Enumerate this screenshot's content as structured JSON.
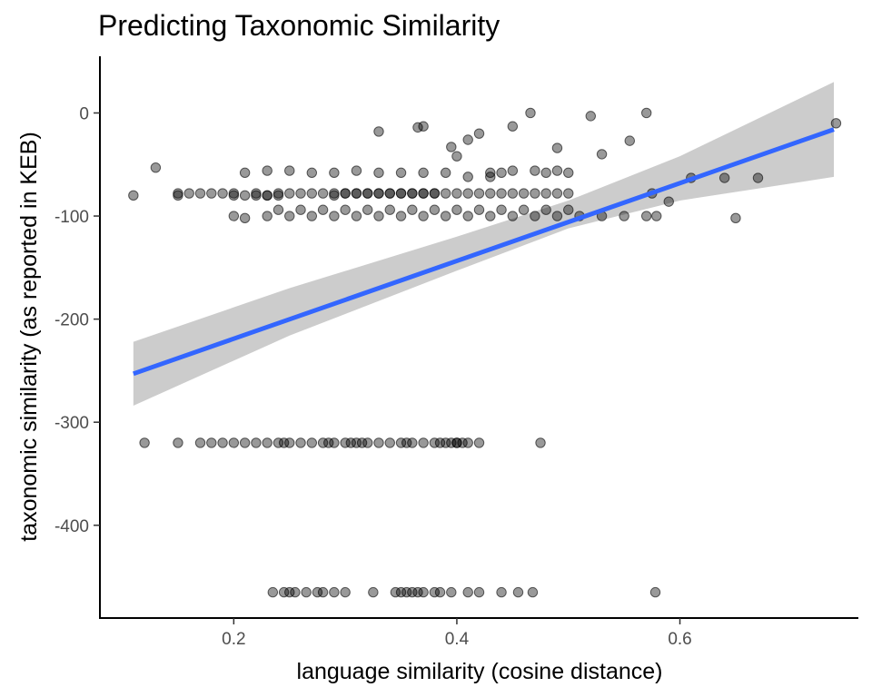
{
  "chart_data": {
    "type": "scatter",
    "title": "Predicting Taxonomic Similarity",
    "xlabel": "language similarity (cosine distance)",
    "ylabel": "taxonomic similarity (as reported in KEB)",
    "xlim": [
      0.08,
      0.76
    ],
    "ylim": [
      -490,
      55
    ],
    "xticks": [
      0.2,
      0.4,
      0.6
    ],
    "xtick_labels": [
      "0.2",
      "0.4",
      "0.6"
    ],
    "yticks": [
      0,
      -100,
      -200,
      -300,
      -400
    ],
    "ytick_labels": [
      "0",
      "-100",
      "-200",
      "-300",
      "-400"
    ],
    "grid": false,
    "legend": "none",
    "colors": {
      "points": "#000000",
      "points_opacity": 0.4,
      "fit_line": "#3366ff",
      "confidence_band": "#cccccc"
    },
    "points": {
      "name": "",
      "x": [
        0.11,
        0.13,
        0.15,
        0.15,
        0.16,
        0.17,
        0.18,
        0.19,
        0.2,
        0.2,
        0.21,
        0.22,
        0.22,
        0.23,
        0.23,
        0.24,
        0.24,
        0.25,
        0.26,
        0.27,
        0.28,
        0.29,
        0.29,
        0.3,
        0.3,
        0.31,
        0.31,
        0.32,
        0.32,
        0.33,
        0.33,
        0.34,
        0.34,
        0.35,
        0.35,
        0.36,
        0.36,
        0.37,
        0.37,
        0.38,
        0.38,
        0.39,
        0.4,
        0.41,
        0.42,
        0.43,
        0.44,
        0.45,
        0.46,
        0.47,
        0.48,
        0.49,
        0.5,
        0.21,
        0.23,
        0.25,
        0.27,
        0.29,
        0.31,
        0.33,
        0.35,
        0.37,
        0.39,
        0.41,
        0.43,
        0.45,
        0.47,
        0.49,
        0.21,
        0.24,
        0.26,
        0.28,
        0.3,
        0.32,
        0.34,
        0.36,
        0.38,
        0.4,
        0.42,
        0.44,
        0.46,
        0.48,
        0.5,
        0.2,
        0.23,
        0.25,
        0.27,
        0.29,
        0.31,
        0.33,
        0.35,
        0.37,
        0.39,
        0.41,
        0.43,
        0.45,
        0.47,
        0.49,
        0.51,
        0.53,
        0.55,
        0.57,
        0.579,
        0.59,
        0.61,
        0.64,
        0.65,
        0.67,
        0.74,
        0.575,
        0.57,
        0.555,
        0.53,
        0.52,
        0.5,
        0.49,
        0.48,
        0.466,
        0.45,
        0.44,
        0.43,
        0.42,
        0.41,
        0.4,
        0.395,
        0.37,
        0.365,
        0.33,
        0.12,
        0.15,
        0.17,
        0.18,
        0.19,
        0.2,
        0.21,
        0.22,
        0.23,
        0.24,
        0.245,
        0.25,
        0.26,
        0.27,
        0.28,
        0.285,
        0.29,
        0.3,
        0.305,
        0.31,
        0.315,
        0.32,
        0.33,
        0.34,
        0.35,
        0.355,
        0.36,
        0.37,
        0.38,
        0.39,
        0.4,
        0.41,
        0.42,
        0.475,
        0.4,
        0.405,
        0.395,
        0.385,
        0.235,
        0.245,
        0.25,
        0.255,
        0.265,
        0.275,
        0.28,
        0.29,
        0.3,
        0.325,
        0.345,
        0.35,
        0.355,
        0.36,
        0.365,
        0.37,
        0.38,
        0.385,
        0.395,
        0.41,
        0.42,
        0.44,
        0.455,
        0.468,
        0.578
      ],
      "y": [
        -80,
        -53,
        -78,
        -80,
        -78,
        -78,
        -78,
        -78,
        -78,
        -80,
        -80,
        -80,
        -78,
        -80,
        -80,
        -80,
        -78,
        -78,
        -78,
        -78,
        -78,
        -78,
        -80,
        -78,
        -78,
        -78,
        -78,
        -78,
        -78,
        -78,
        -78,
        -78,
        -78,
        -78,
        -78,
        -78,
        -78,
        -78,
        -78,
        -78,
        -78,
        -78,
        -78,
        -78,
        -78,
        -78,
        -78,
        -78,
        -78,
        -78,
        -78,
        -78,
        -78,
        -58,
        -56,
        -56,
        -58,
        -58,
        -56,
        -58,
        -58,
        -58,
        -58,
        -62,
        -62,
        -56,
        -56,
        -56,
        -102,
        -94,
        -94,
        -94,
        -94,
        -94,
        -94,
        -94,
        -94,
        -94,
        -94,
        -94,
        -94,
        -94,
        -94,
        -100,
        -100,
        -100,
        -100,
        -100,
        -100,
        -100,
        -100,
        -100,
        -100,
        -100,
        -100,
        -100,
        -100,
        -100,
        -100,
        -100,
        -100,
        -100,
        -100,
        -86,
        -63,
        -63,
        -102,
        -63,
        -10,
        -78,
        0,
        -27,
        -40,
        -3,
        -58,
        -34,
        -58,
        0,
        -13,
        -58,
        -58,
        -20,
        -26,
        -42,
        -33,
        -13,
        -14,
        -18,
        -320,
        -320,
        -320,
        -320,
        -320,
        -320,
        -320,
        -320,
        -320,
        -320,
        -320,
        -320,
        -320,
        -320,
        -320,
        -320,
        -320,
        -320,
        -320,
        -320,
        -320,
        -320,
        -320,
        -320,
        -320,
        -320,
        -320,
        -320,
        -320,
        -320,
        -320,
        -320,
        -320,
        -320,
        -320,
        -320,
        -320,
        -320,
        -465,
        -465,
        -465,
        -465,
        -465,
        -465,
        -465,
        -465,
        -465,
        -465,
        -465,
        -465,
        -465,
        -465,
        -465,
        -465,
        -465,
        -465,
        -465,
        -465,
        -465,
        -465,
        -465,
        -465,
        -465
      ]
    },
    "fit_line": {
      "x": [
        0.11,
        0.738
      ],
      "y": [
        -253,
        -16
      ]
    },
    "confidence_band": {
      "x": [
        0.11,
        0.25,
        0.4,
        0.5,
        0.6,
        0.738
      ],
      "upper": [
        -222,
        -170,
        -120,
        -85,
        -42,
        30
      ],
      "lower": [
        -284,
        -216,
        -153,
        -112,
        -85,
        -62
      ]
    }
  }
}
